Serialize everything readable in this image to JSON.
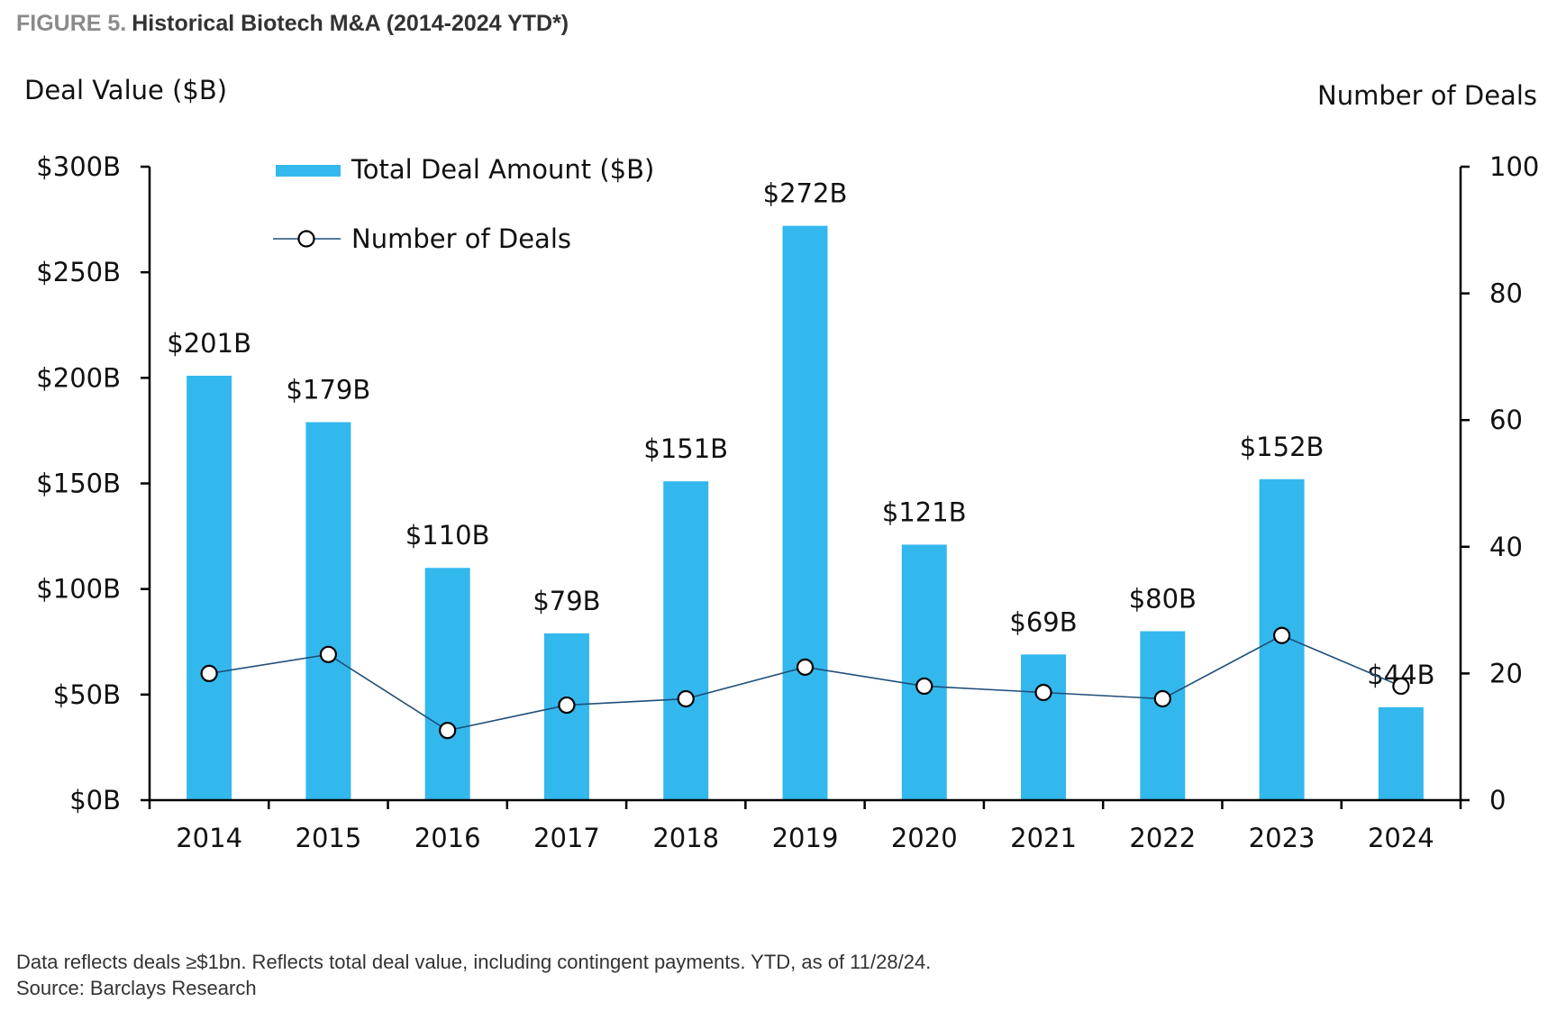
{
  "figure": {
    "label": "FIGURE 5.",
    "title": "Historical Biotech M&A (2014-2024 YTD*)"
  },
  "footer": {
    "note": "Data reflects deals ≥$1bn. Reflects total deal value, including contingent payments. YTD, as of 11/28/24.",
    "source": "Source: Barclays Research"
  },
  "chart_data": {
    "type": "bar",
    "categories": [
      "2014",
      "2015",
      "2016",
      "2017",
      "2018",
      "2019",
      "2020",
      "2021",
      "2022",
      "2023",
      "2024"
    ],
    "series": [
      {
        "name": "Total Deal Amount ($B)",
        "type": "bar",
        "axis": "left",
        "color": "#33b8ee",
        "values": [
          201,
          179,
          110,
          79,
          151,
          272,
          121,
          69,
          80,
          152,
          44
        ],
        "data_labels": [
          "$201B",
          "$179B",
          "$110B",
          "$79B",
          "$151B",
          "$272B",
          "$121B",
          "$69B",
          "$80B",
          "$152B",
          "$44B"
        ]
      },
      {
        "name": "Number of Deals",
        "type": "line",
        "axis": "right",
        "color": "#1f4e79",
        "marker": "open-circle",
        "values": [
          20,
          23,
          11,
          15,
          16,
          21,
          18,
          17,
          16,
          26,
          18
        ]
      }
    ],
    "y_left": {
      "label": "Deal Value ($B)",
      "range": [
        0,
        300
      ],
      "ticks": [
        0,
        50,
        100,
        150,
        200,
        250,
        300
      ],
      "tick_labels": [
        "$0B",
        "$50B",
        "$100B",
        "$150B",
        "$200B",
        "$250B",
        "$300B"
      ]
    },
    "y_right": {
      "label": "Number of Deals",
      "range": [
        0,
        100
      ],
      "ticks": [
        0,
        20,
        40,
        60,
        80,
        100
      ],
      "tick_labels": [
        "0",
        "20",
        "40",
        "60",
        "80",
        "100"
      ]
    },
    "grid": false,
    "legend_position": "top-left"
  }
}
